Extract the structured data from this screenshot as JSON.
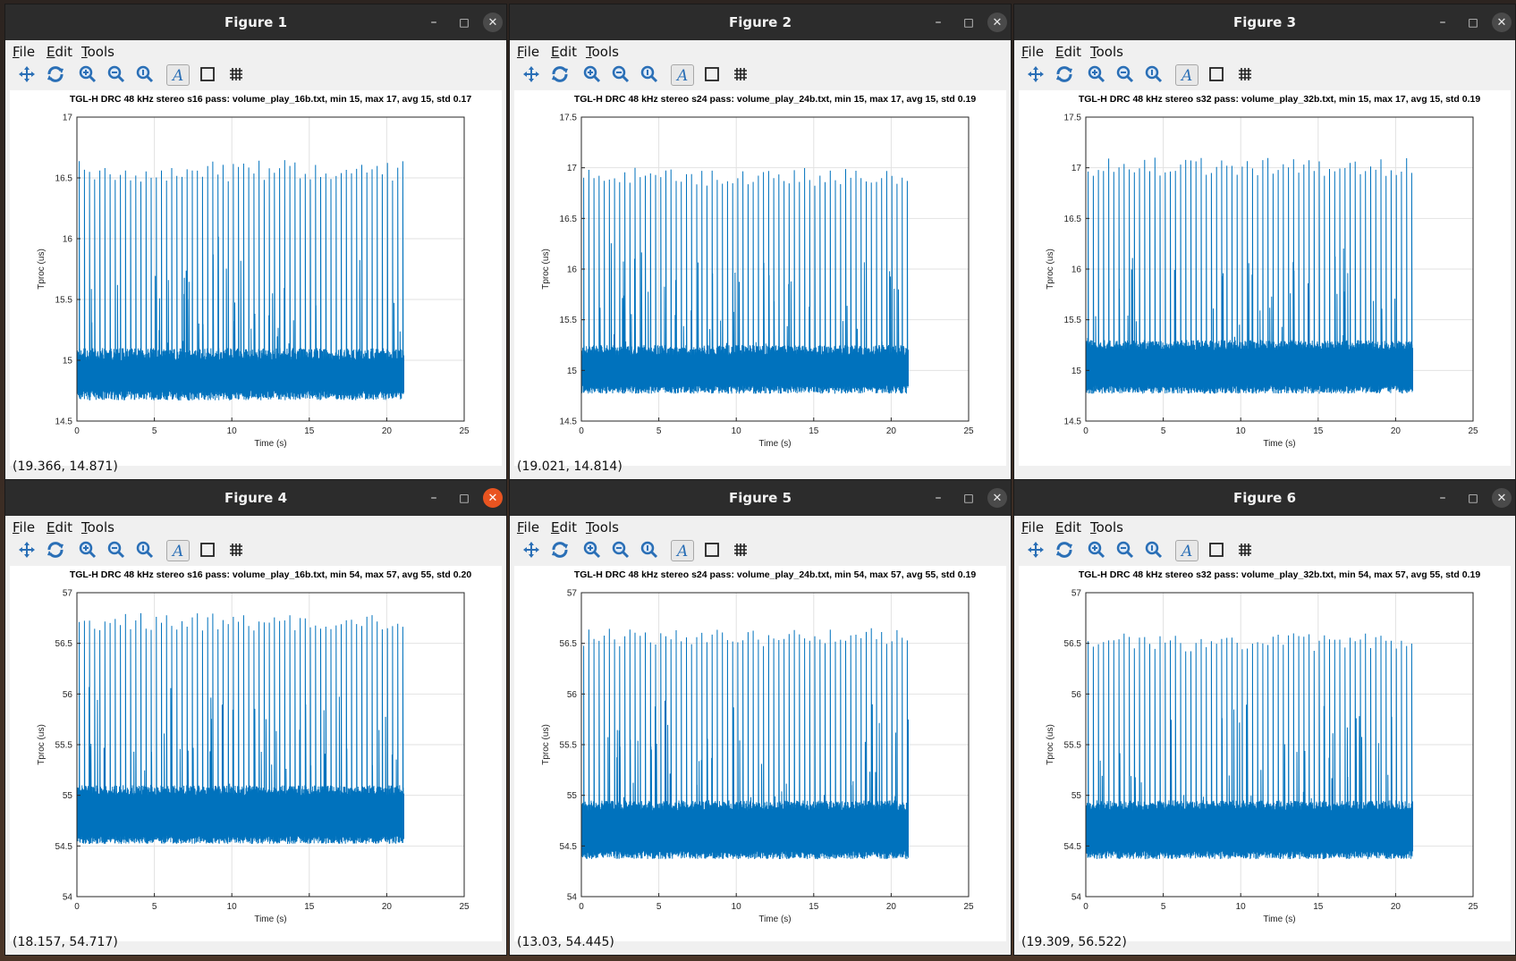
{
  "desktop": {
    "background": "#3b2a22"
  },
  "menu": {
    "file": "File",
    "edit": "Edit",
    "tools": "Tools"
  },
  "icons": [
    "pan-icon",
    "rotate-icon",
    "zoom-in-icon",
    "zoom-out-icon",
    "zoom-reset-icon",
    "text-icon",
    "axes-box-icon",
    "grid-icon"
  ],
  "series_color": "#0072bd",
  "figures": [
    {
      "title": "Figure 1",
      "active": false,
      "status": "(19.366, 14.871)",
      "chart_data": {
        "type": "line",
        "title": "TGL-H DRC 48 kHz stereo s16 pass: volume_play_16b.txt, min   15, max   17, avg   15, std  0.17",
        "xlabel": "Time (s)",
        "ylabel": "Tproc (us)",
        "xlim": [
          0,
          25
        ],
        "ylim": [
          14.5,
          17
        ],
        "xticks": [
          "0",
          "5",
          "10",
          "15",
          "20",
          "25"
        ],
        "yticks": [
          "14.5",
          "15",
          "15.5",
          "16",
          "16.5",
          "17"
        ],
        "grid": true,
        "x_end": 21.1,
        "series": [
          {
            "baseline_low": 14.75,
            "baseline_high": 15.0,
            "spike_peak": 16.65,
            "spike_count": 62
          }
        ]
      }
    },
    {
      "title": "Figure 2",
      "active": false,
      "status": "(19.021, 14.814)",
      "chart_data": {
        "type": "line",
        "title": "TGL-H DRC 48 kHz stereo s24 pass: volume_play_24b.txt, min   15, max   17, avg   15, std  0.19",
        "xlabel": "Time (s)",
        "ylabel": "Tproc (us)",
        "xlim": [
          0,
          25
        ],
        "ylim": [
          14.5,
          17.5
        ],
        "xticks": [
          "0",
          "5",
          "10",
          "15",
          "20",
          "25"
        ],
        "yticks": [
          "14.5",
          "15",
          "15.5",
          "16",
          "16.5",
          "17",
          "17.5"
        ],
        "grid": true,
        "x_end": 21.1,
        "series": [
          {
            "baseline_low": 14.85,
            "baseline_high": 15.15,
            "spike_peak": 17.0,
            "spike_count": 62
          }
        ]
      }
    },
    {
      "title": "Figure 3",
      "active": false,
      "status": "",
      "chart_data": {
        "type": "line",
        "title": "TGL-H DRC 48 kHz stereo s32 pass: volume_play_32b.txt, min   15, max   17, avg   15, std  0.19",
        "xlabel": "Time (s)",
        "ylabel": "Tproc (us)",
        "xlim": [
          0,
          25
        ],
        "ylim": [
          14.5,
          17.5
        ],
        "xticks": [
          "0",
          "5",
          "10",
          "15",
          "20",
          "25"
        ],
        "yticks": [
          "14.5",
          "15",
          "15.5",
          "16",
          "16.5",
          "17",
          "17.5"
        ],
        "grid": true,
        "x_end": 21.1,
        "series": [
          {
            "baseline_low": 14.85,
            "baseline_high": 15.2,
            "spike_peak": 17.1,
            "spike_count": 62
          }
        ]
      }
    },
    {
      "title": "Figure 4",
      "active": true,
      "status": "(18.157, 54.717)",
      "chart_data": {
        "type": "line",
        "title": "TGL-H DRC 48 kHz stereo s16 pass: volume_play_16b.txt, min   54, max   57, avg   55, std  0.20",
        "xlabel": "Time (s)",
        "ylabel": "Tproc (us)",
        "xlim": [
          0,
          25
        ],
        "ylim": [
          54,
          57
        ],
        "xticks": [
          "0",
          "5",
          "10",
          "15",
          "20",
          "25"
        ],
        "yticks": [
          "54",
          "54.5",
          "55",
          "55.5",
          "56",
          "56.5",
          "57"
        ],
        "grid": true,
        "x_end": 21.1,
        "series": [
          {
            "baseline_low": 54.6,
            "baseline_high": 55.0,
            "spike_peak": 56.8,
            "spike_count": 62
          }
        ]
      }
    },
    {
      "title": "Figure 5",
      "active": false,
      "status": "(13.03, 54.445)",
      "chart_data": {
        "type": "line",
        "title": "TGL-H DRC 48 kHz stereo s24 pass: volume_play_24b.txt, min   54, max   57, avg   55, std  0.19",
        "xlabel": "Time (s)",
        "ylabel": "Tproc (us)",
        "xlim": [
          0,
          25
        ],
        "ylim": [
          54,
          57
        ],
        "xticks": [
          "0",
          "5",
          "10",
          "15",
          "20",
          "25"
        ],
        "yticks": [
          "54",
          "54.5",
          "55",
          "55.5",
          "56",
          "56.5",
          "57"
        ],
        "grid": true,
        "x_end": 21.1,
        "series": [
          {
            "baseline_low": 54.45,
            "baseline_high": 54.85,
            "spike_peak": 56.65,
            "spike_count": 62
          }
        ]
      }
    },
    {
      "title": "Figure 6",
      "active": false,
      "status": "(19.309, 56.522)",
      "chart_data": {
        "type": "line",
        "title": "TGL-H DRC 48 kHz stereo s32 pass: volume_play_32b.txt, min   54, max   57, avg   55, std  0.19",
        "xlabel": "Time (s)",
        "ylabel": "Tproc (us)",
        "xlim": [
          0,
          25
        ],
        "ylim": [
          54,
          57
        ],
        "xticks": [
          "0",
          "5",
          "10",
          "15",
          "20",
          "25"
        ],
        "yticks": [
          "54",
          "54.5",
          "55",
          "55.5",
          "56",
          "56.5",
          "57"
        ],
        "grid": true,
        "x_end": 21.1,
        "series": [
          {
            "baseline_low": 54.45,
            "baseline_high": 54.85,
            "spike_peak": 56.6,
            "spike_count": 62
          }
        ]
      }
    }
  ]
}
